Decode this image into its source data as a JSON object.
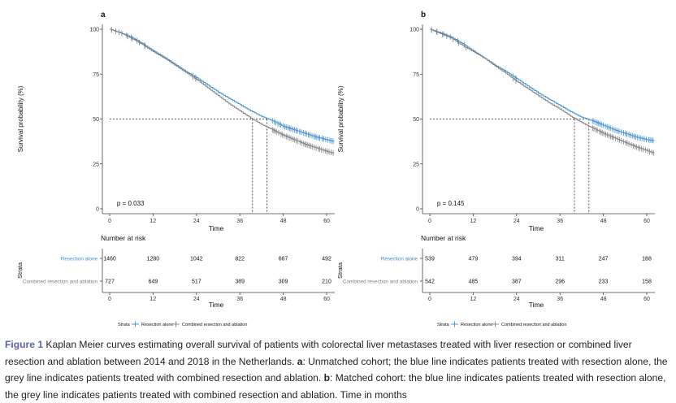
{
  "panels": [
    {
      "label": "a",
      "p_value": "p = 0.033",
      "ylabel": "Survival probability (%)",
      "xlabel": "Time",
      "risk_title": "Number at risk",
      "risk_xlabel": "Time",
      "strata_axis_label": "Strata",
      "risk_table": [
        {
          "stratum": "Resection alone",
          "counts": [
            "1460",
            "1280",
            "1042",
            "822",
            "667",
            "492"
          ]
        },
        {
          "stratum": "Combined resection and ablation",
          "counts": [
            "727",
            "649",
            "517",
            "389",
            "309",
            "210"
          ]
        }
      ],
      "legend": {
        "title": "Strata",
        "items": [
          "Resection alone",
          "Combined resection and ablation"
        ]
      }
    },
    {
      "label": "b",
      "p_value": "p = 0.145",
      "ylabel": "Survival probability (%)",
      "xlabel": "Time",
      "risk_title": "Number at risk",
      "risk_xlabel": "Time",
      "strata_axis_label": "Strata",
      "risk_table": [
        {
          "stratum": "Resection alone",
          "counts": [
            "539",
            "479",
            "394",
            "311",
            "247",
            "188"
          ]
        },
        {
          "stratum": "Combined resection and ablation",
          "counts": [
            "542",
            "485",
            "387",
            "296",
            "233",
            "158"
          ]
        }
      ],
      "legend": {
        "title": "Strata",
        "items": [
          "Resection alone",
          "Combined resection and ablation"
        ]
      }
    }
  ],
  "colors": {
    "resection": "#3d8fd6",
    "combined": "#808080",
    "figure_label": "#5a62ad"
  },
  "caption": {
    "figure_label": "Figure 1",
    "part1": " Kaplan Meier curves estimating overall survival of patients with colorectal liver metastases treated with liver resection or combined liver resection and ablation between 2014 and 2018 in the Netherlands. ",
    "a_label": "a",
    "part2": ": Unmatched cohort; the blue line indicates patients treated with resection alone, the grey line indicates patients treated with combined resection and ablation. ",
    "b_label": "b",
    "part3": ": Matched cohort: the blue line indicates patients treated with resection alone, the grey line indicates patients treated with combined resection and ablation. Time in months"
  },
  "chart_data": [
    {
      "type": "line",
      "subtype": "kaplan-meier",
      "panel": "a",
      "xlabel": "Time",
      "ylabel": "Survival probability (%)",
      "xlim": [
        0,
        60
      ],
      "ylim": [
        0,
        100
      ],
      "xticks": [
        0,
        12,
        24,
        36,
        48,
        60
      ],
      "yticks": [
        0,
        25,
        50,
        75,
        100
      ],
      "grid": false,
      "legend_position": "bottom",
      "annotation": "p = 0.033",
      "median_survival": {
        "Combined resection and ablation": 39.5,
        "Resection alone": 43.5
      },
      "series": [
        {
          "name": "Resection alone",
          "color": "#3d8fd6",
          "x": [
            0,
            3,
            6,
            9,
            12,
            15,
            18,
            21,
            24,
            27,
            30,
            33,
            36,
            39,
            42,
            45,
            48,
            51,
            54,
            57,
            60,
            62
          ],
          "y": [
            100,
            98,
            95.5,
            92,
            88,
            84.5,
            80.5,
            76.5,
            73,
            69,
            65,
            61.5,
            58,
            54.5,
            51.5,
            49,
            46,
            44,
            42,
            40,
            38.5,
            37.5
          ]
        },
        {
          "name": "Combined resection and ablation",
          "color": "#808080",
          "x": [
            0,
            3,
            6,
            9,
            12,
            15,
            18,
            21,
            24,
            27,
            30,
            33,
            36,
            39,
            42,
            45,
            48,
            51,
            54,
            57,
            60,
            62
          ],
          "y": [
            100,
            98,
            95,
            91.5,
            87.5,
            84,
            80,
            76,
            72,
            67.5,
            63,
            58.5,
            54.5,
            50.5,
            47,
            44,
            41,
            38.5,
            36,
            34,
            32,
            31
          ]
        }
      ]
    },
    {
      "type": "line",
      "subtype": "kaplan-meier",
      "panel": "b",
      "xlabel": "Time",
      "ylabel": "Survival probability (%)",
      "xlim": [
        0,
        60
      ],
      "ylim": [
        0,
        100
      ],
      "xticks": [
        0,
        12,
        24,
        36,
        48,
        60
      ],
      "yticks": [
        0,
        25,
        50,
        75,
        100
      ],
      "grid": false,
      "legend_position": "bottom",
      "annotation": "p = 0.145",
      "median_survival": {
        "Combined resection and ablation": 40,
        "Resection alone": 44
      },
      "series": [
        {
          "name": "Resection alone",
          "color": "#3d8fd6",
          "x": [
            0,
            3,
            6,
            9,
            12,
            15,
            18,
            21,
            24,
            27,
            30,
            33,
            36,
            39,
            42,
            45,
            48,
            51,
            54,
            57,
            60,
            62
          ],
          "y": [
            100,
            98,
            95.5,
            92,
            88,
            84,
            80,
            76.5,
            72.5,
            68.5,
            64.5,
            61,
            57.5,
            54,
            51,
            49,
            46.5,
            44,
            42,
            40,
            38.5,
            38
          ]
        },
        {
          "name": "Combined resection and ablation",
          "color": "#808080",
          "x": [
            0,
            3,
            6,
            9,
            12,
            15,
            18,
            21,
            24,
            27,
            30,
            33,
            36,
            39,
            42,
            45,
            48,
            51,
            54,
            57,
            60,
            62
          ],
          "y": [
            100,
            97.5,
            95,
            91,
            87.5,
            84,
            79.5,
            75.5,
            71,
            67,
            63,
            59,
            55.5,
            51.5,
            48,
            45,
            42,
            39.5,
            37,
            34.5,
            32.5,
            31
          ]
        }
      ]
    }
  ]
}
